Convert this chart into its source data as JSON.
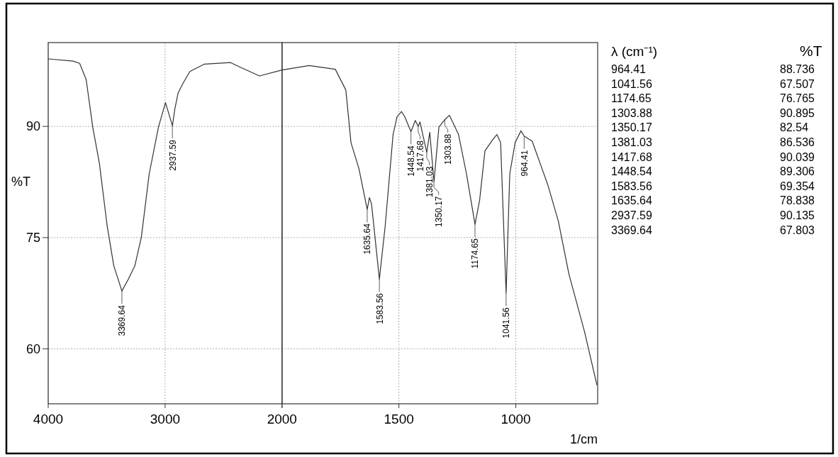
{
  "chart_data": [
    {
      "type": "line",
      "ylabel": "%T",
      "color": "#333333",
      "x": [
        4000,
        3787,
        3731,
        3675,
        3619,
        3562,
        3495,
        3439,
        3369.64,
        3315,
        3259,
        3203,
        3136,
        3057,
        2997,
        2937.59,
        2916,
        2889,
        2844,
        2788,
        2664,
        2440,
        2373,
        2193,
        2000
      ],
      "values": [
        99.1,
        98.8,
        98.5,
        96.3,
        89.9,
        85.0,
        76.5,
        71.2,
        67.8,
        69.4,
        71.2,
        75.1,
        83.6,
        89.9,
        93.2,
        90.1,
        92.4,
        94.5,
        95.9,
        97.4,
        98.4,
        98.6,
        98.1,
        96.8,
        97.6
      ],
      "xlim": [
        4000,
        2000
      ],
      "xticks": [
        4000,
        3000,
        {
          "value": 2000,
          "label": null
        }
      ],
      "ylim": [
        52.6,
        101.3
      ],
      "yticks": [
        60,
        75,
        90
      ],
      "grid": true,
      "annotations": [
        {
          "text": "3369.64",
          "x": 3369.64,
          "y": 67.8
        },
        {
          "text": "2937.59",
          "x": 2937.59,
          "y": 90.1
        }
      ]
    },
    {
      "type": "line",
      "xlabel": "1/cm",
      "color": "#333333",
      "x": [
        2000,
        1884,
        1772,
        1727,
        1705,
        1671,
        1635.64,
        1626,
        1617,
        1583.56,
        1559,
        1525,
        1508,
        1489,
        1475,
        1448.54,
        1430,
        1417.68,
        1410,
        1381.03,
        1368,
        1350.17,
        1329,
        1303.88,
        1284,
        1245,
        1211,
        1174.65,
        1155,
        1132,
        1099,
        1081,
        1065,
        1041.56,
        1026,
        1003,
        978,
        964.41,
        930,
        863,
        818,
        773,
        706,
        653
      ],
      "values": [
        97.6,
        98.2,
        97.7,
        94.9,
        87.8,
        84.3,
        78.8,
        80.4,
        79.5,
        69.4,
        76.5,
        88.9,
        91.3,
        92.0,
        91.3,
        89.3,
        90.8,
        90.0,
        90.6,
        86.5,
        89.2,
        82.5,
        89.9,
        90.9,
        91.5,
        88.9,
        83.6,
        76.8,
        80.0,
        86.7,
        88.2,
        88.9,
        87.8,
        67.5,
        83.6,
        87.8,
        89.4,
        88.7,
        88.0,
        82.1,
        77.2,
        70.1,
        62.3,
        55.1
      ],
      "xlim": [
        2000,
        650
      ],
      "xticks": [
        2000,
        1500,
        1000
      ],
      "ylim": [
        52.6,
        101.3
      ],
      "yticks": [
        60,
        75,
        90
      ],
      "grid": true,
      "tick_labels": "x",
      "annotations": [
        {
          "text": "1635.64",
          "x": 1635.64,
          "y": 78.8
        },
        {
          "text": "1583.56",
          "x": 1583.56,
          "y": 69.4
        },
        {
          "text": "1448.54",
          "x": 1448.54,
          "y": 89.3
        },
        {
          "text": "1417.68",
          "x": 1417.68,
          "y": 90.0
        },
        {
          "text": "1381.03",
          "x": 1381.03,
          "y": 86.5
        },
        {
          "text": "1350.17",
          "x": 1350.17,
          "y": 82.5
        },
        {
          "text": "1303.88",
          "x": 1303.88,
          "y": 90.9
        },
        {
          "text": "1174.65",
          "x": 1174.65,
          "y": 76.8
        },
        {
          "text": "1041.56",
          "x": 1041.56,
          "y": 67.5
        },
        {
          "text": "964.41",
          "x": 964.41,
          "y": 88.7
        }
      ]
    },
    {
      "type": "other",
      "xlabel": "λ (cm⁻¹)",
      "ylabel": "%T",
      "data_labels": true,
      "categories": [
        "964.41",
        "1041.56",
        "1174.65",
        "1303.88",
        "1350.17",
        "1381.03",
        "1417.68",
        "1448.54",
        "1583.56",
        "1635.64",
        "2937.59",
        "3369.64"
      ],
      "values": [
        88.736,
        67.507,
        76.765,
        90.895,
        82.54,
        86.536,
        90.039,
        89.306,
        69.354,
        78.838,
        90.135,
        67.803
      ]
    }
  ]
}
